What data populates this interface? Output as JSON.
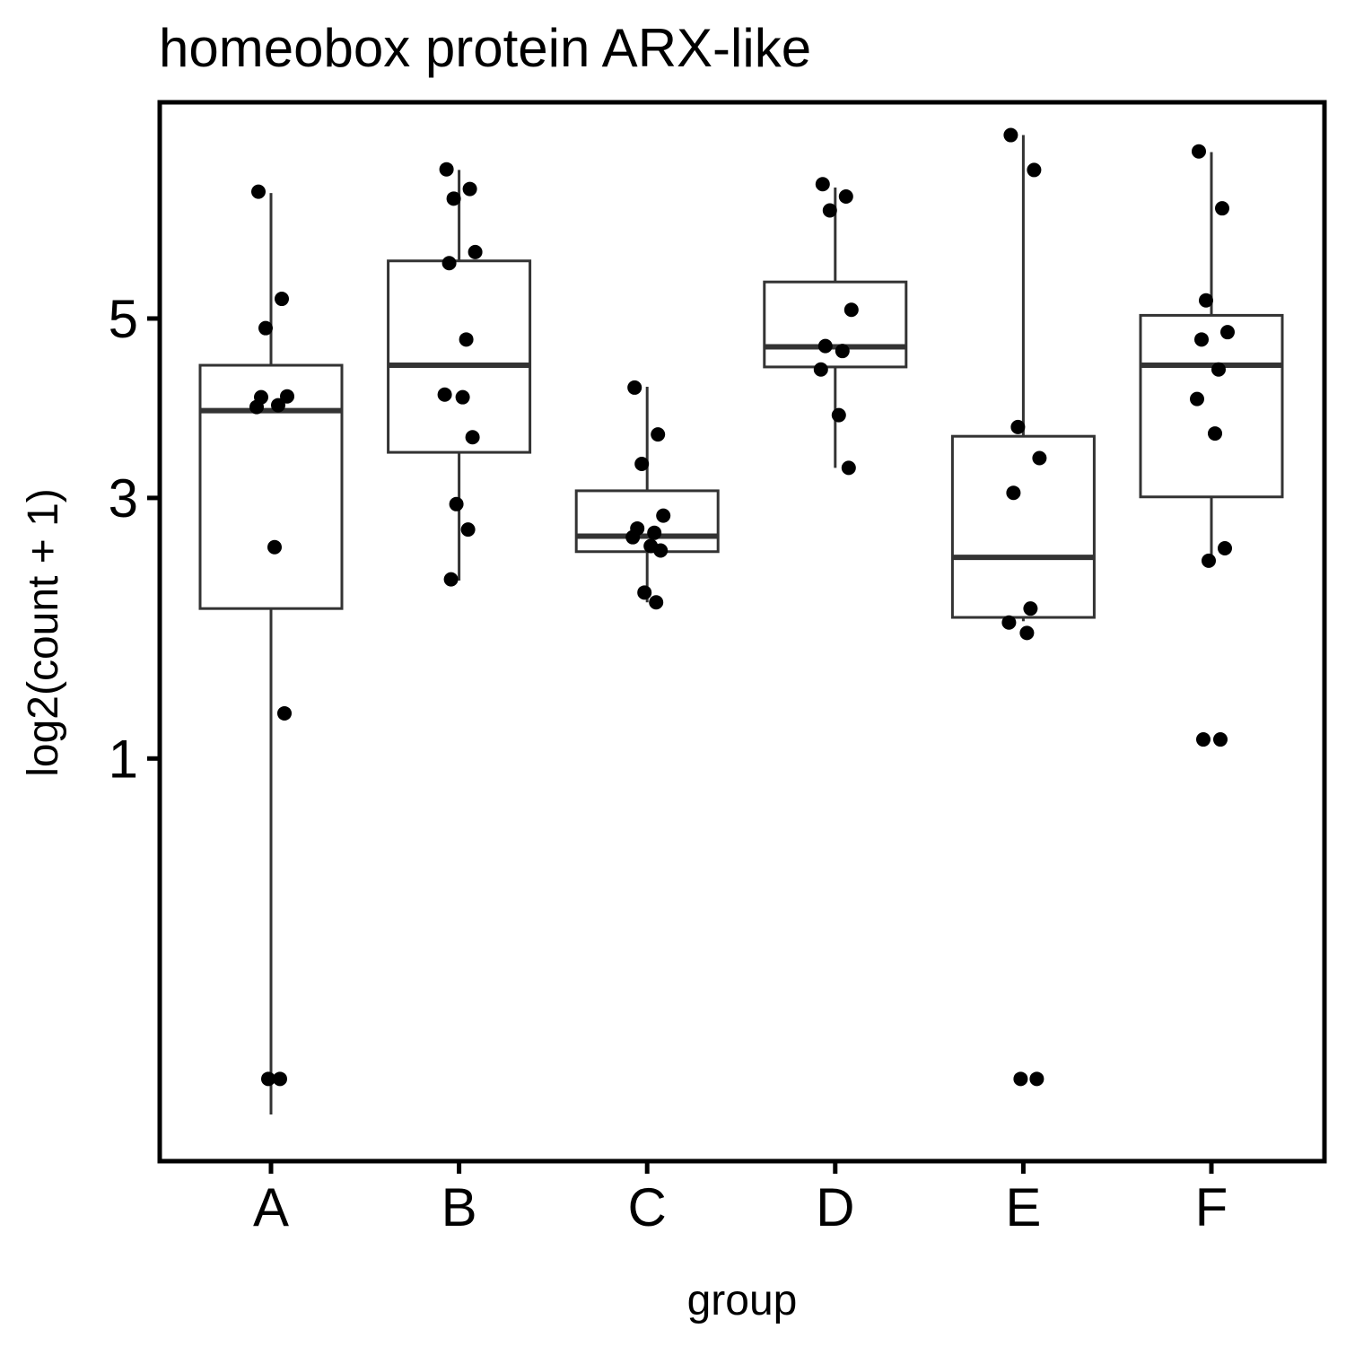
{
  "chart_data": {
    "type": "box",
    "title": "homeobox protein ARX-like",
    "xlabel": "group",
    "ylabel": "log2(count + 1)",
    "scale": "sqrt",
    "ylim": [
      0,
      7.3
    ],
    "yticks": [
      1,
      3,
      5
    ],
    "ytick_labels": [
      "1",
      "3",
      "5"
    ],
    "categories": [
      "A",
      "B",
      "C",
      "D",
      "E",
      "F"
    ],
    "boxes": [
      {
        "group": "A",
        "lower_whisker": 0,
        "q1": 2.02,
        "median": 3.91,
        "q3": 4.43,
        "upper_whisker": 6.7
      },
      {
        "group": "B",
        "lower_whisker": 2.25,
        "q1": 3.46,
        "median": 4.43,
        "q3": 5.75,
        "upper_whisker": 7.04
      },
      {
        "group": "C",
        "lower_whisker": 2.07,
        "q1": 2.5,
        "median": 2.64,
        "q3": 3.07,
        "upper_whisker": 4.18
      },
      {
        "group": "D",
        "lower_whisker": 3.3,
        "q1": 4.41,
        "median": 4.65,
        "q3": 5.47,
        "upper_whisker": 6.78
      },
      {
        "group": "E",
        "lower_whisker": 1.92,
        "q1": 1.95,
        "median": 2.45,
        "q3": 3.63,
        "upper_whisker": 7.57
      },
      {
        "group": "F",
        "lower_whisker": 2.4,
        "q1": 3.01,
        "median": 4.43,
        "q3": 5.04,
        "upper_whisker": 7.31
      }
    ],
    "points": [
      {
        "group": "A",
        "y": [
          6.72,
          5.25,
          4.88,
          4.07,
          4.06,
          3.97,
          3.95,
          2.54,
          1.27,
          0.01,
          0.01
        ]
      },
      {
        "group": "B",
        "y": [
          7.05,
          6.76,
          6.62,
          5.87,
          5.72,
          4.74,
          4.09,
          4.06,
          3.62,
          2.94,
          2.7,
          2.26
        ]
      },
      {
        "group": "C",
        "y": [
          4.17,
          3.65,
          3.34,
          2.83,
          2.71,
          2.67,
          2.63,
          2.55,
          2.51,
          2.15,
          2.07
        ]
      },
      {
        "group": "D",
        "y": [
          6.83,
          6.65,
          6.45,
          5.11,
          4.66,
          4.6,
          4.38,
          3.86,
          3.3
        ]
      },
      {
        "group": "E",
        "y": [
          7.57,
          7.04,
          3.73,
          3.4,
          3.05,
          2.02,
          1.91,
          1.83,
          0.01,
          0.01
        ]
      },
      {
        "group": "F",
        "y": [
          7.32,
          6.48,
          5.23,
          4.83,
          4.74,
          4.38,
          4.04,
          3.66,
          2.53,
          2.42,
          1.11,
          1.11
        ]
      }
    ],
    "box_color": "#333333",
    "point_color": "#000000",
    "grid": false,
    "legend": "none"
  }
}
